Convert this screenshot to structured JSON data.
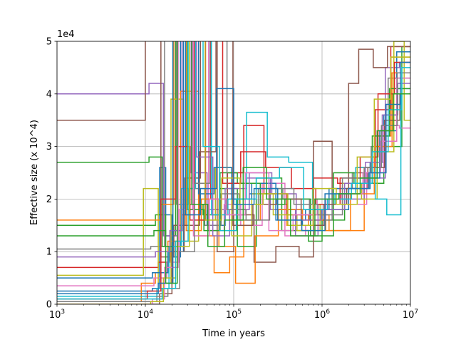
{
  "chart_data": {
    "type": "line",
    "step": "post",
    "xlabel": "Time in years",
    "ylabel": "Effective size (x 10^4)",
    "offset_text": "1e4",
    "x_scale": "log",
    "xlim": [
      1000,
      10000000
    ],
    "ylim": [
      0,
      5
    ],
    "grid": true,
    "legend": "none",
    "x_ticks": [
      {
        "value": 1000,
        "base": "10",
        "exp": "3"
      },
      {
        "value": 10000,
        "base": "10",
        "exp": "4"
      },
      {
        "value": 100000,
        "base": "10",
        "exp": "5"
      },
      {
        "value": 1000000,
        "base": "10",
        "exp": "6"
      },
      {
        "value": 10000000,
        "base": "10",
        "exp": "7"
      }
    ],
    "y_ticks": [
      {
        "value": 0,
        "label": "0"
      },
      {
        "value": 1,
        "label": "1"
      },
      {
        "value": 2,
        "label": "2"
      },
      {
        "value": 3,
        "label": "3"
      },
      {
        "value": 4,
        "label": "4"
      },
      {
        "value": 5,
        "label": "5"
      }
    ],
    "series": [
      {
        "color": "#1f77b4",
        "x": [
          1000,
          12000,
          14500,
          17000,
          20000,
          25000,
          35000,
          50000,
          80000,
          150000,
          300000,
          600000,
          1000000,
          2000000,
          3500000,
          5000000,
          7000000
        ],
        "y": [
          0.25,
          0.3,
          2.6,
          1.7,
          0.9,
          6.0,
          2.3,
          1.5,
          1.9,
          2.1,
          1.8,
          1.5,
          1.8,
          2.2,
          2.7,
          3.6,
          4.1
        ]
      },
      {
        "color": "#ff7f0e",
        "x": [
          1000,
          9000,
          13000,
          18000,
          25000,
          40000,
          60000,
          90000,
          130000,
          200000,
          400000,
          700000,
          1200000,
          2000000,
          3000000,
          4500000,
          6000000
        ],
        "y": [
          0.05,
          0.4,
          0.6,
          1.2,
          4.05,
          1.3,
          0.6,
          0.9,
          1.6,
          1.9,
          1.5,
          1.7,
          1.4,
          1.4,
          2.6,
          3.2,
          4.7
        ]
      },
      {
        "color": "#2ca02c",
        "x": [
          1000,
          13000,
          17000,
          22000,
          30000,
          45000,
          70000,
          110000,
          180000,
          350000,
          700000,
          1000000,
          1800000,
          3000000,
          5000000,
          8000000
        ],
        "y": [
          1.5,
          1.7,
          1.3,
          6.0,
          1.9,
          1.7,
          2.2,
          1.1,
          2.4,
          1.4,
          1.2,
          1.6,
          2.1,
          2.3,
          3.0,
          4.9
        ]
      },
      {
        "color": "#d62728",
        "x": [
          1000,
          14000,
          19000,
          26000,
          36000,
          55000,
          85000,
          130000,
          220000,
          400000,
          800000,
          1500000,
          2500000,
          4000000,
          6000000
        ],
        "y": [
          0.7,
          0.8,
          1.4,
          1.7,
          6.0,
          2.0,
          2.5,
          3.4,
          2.1,
          1.7,
          2.4,
          2.3,
          2.6,
          3.7,
          4.9
        ]
      },
      {
        "color": "#9467bd",
        "x": [
          1000,
          11000,
          16000,
          23000,
          33000,
          50000,
          80000,
          140000,
          260000,
          500000,
          900000,
          1700000,
          3000000,
          5200000,
          7500000
        ],
        "y": [
          4.0,
          4.2,
          1.3,
          6.0,
          2.5,
          1.8,
          2.2,
          2.4,
          1.8,
          1.3,
          1.9,
          2.0,
          2.4,
          4.5,
          4.6
        ]
      },
      {
        "color": "#8c564b",
        "x": [
          1000,
          10000,
          15000,
          21000,
          28000,
          42000,
          65000,
          100000,
          170000,
          300000,
          550000,
          800000,
          1300000,
          2000000,
          2600000,
          3800000,
          5500000
        ],
        "y": [
          3.5,
          5.9,
          0.9,
          1.5,
          2.4,
          6.0,
          1.0,
          1.7,
          0.8,
          1.1,
          0.9,
          3.1,
          2.0,
          4.2,
          4.85,
          4.5,
          4.9
        ]
      },
      {
        "color": "#e377c2",
        "x": [
          1000,
          12500,
          17500,
          24000,
          34000,
          52000,
          78000,
          120000,
          210000,
          380000,
          650000,
          1100000,
          1900000,
          3200000,
          5000000,
          7500000
        ],
        "y": [
          0.35,
          0.5,
          0.8,
          1.8,
          6.0,
          1.4,
          1.9,
          1.5,
          2.3,
          1.3,
          1.5,
          2.0,
          1.9,
          2.5,
          3.4,
          3.35
        ]
      },
      {
        "color": "#7f7f7f",
        "x": [
          1000,
          11500,
          16500,
          22500,
          31000,
          47000,
          72000,
          115000,
          190000,
          360000,
          720000,
          1300000,
          2200000,
          3600000,
          5600000
        ],
        "y": [
          1.05,
          1.1,
          6.0,
          1.9,
          2.2,
          1.5,
          2.1,
          1.6,
          2.2,
          2.0,
          1.6,
          2.2,
          2.5,
          3.0,
          4.3
        ]
      },
      {
        "color": "#bcbd22",
        "x": [
          1000,
          9500,
          14000,
          19500,
          27000,
          40000,
          62000,
          95000,
          160000,
          280000,
          520000,
          950000,
          1700000,
          2800000,
          4200000,
          6500000,
          8500000
        ],
        "y": [
          0.55,
          2.2,
          0.4,
          3.9,
          1.2,
          1.6,
          2.6,
          1.3,
          2.1,
          1.7,
          1.4,
          1.9,
          2.3,
          2.0,
          2.9,
          5.0,
          3.5
        ]
      },
      {
        "color": "#17becf",
        "x": [
          1000,
          13500,
          18500,
          25500,
          37000,
          56000,
          86000,
          140000,
          240000,
          420000,
          780000,
          1400000,
          2400000,
          4000000,
          5400000,
          7800000
        ],
        "y": [
          0.15,
          0.3,
          1.1,
          2.2,
          6.0,
          1.7,
          2.0,
          3.65,
          2.8,
          2.7,
          1.9,
          2.1,
          2.6,
          2.0,
          1.7,
          4.0
        ]
      },
      {
        "color": "#1f77b4",
        "x": [
          1000,
          12000,
          18000,
          27000,
          40000,
          60000,
          95000,
          160000,
          300000,
          650000,
          1200000,
          2500000,
          4500000,
          7000000
        ],
        "y": [
          0.5,
          0.6,
          1.0,
          6.0,
          2.1,
          2.6,
          2.0,
          2.3,
          1.6,
          1.8,
          2.2,
          2.4,
          3.3,
          4.8
        ]
      },
      {
        "color": "#ff7f0e",
        "x": [
          1000,
          15000,
          21000,
          29000,
          43000,
          68000,
          105000,
          175000,
          320000,
          600000,
          1100000,
          2100000,
          3900000,
          6200000
        ],
        "y": [
          1.6,
          1.9,
          6.0,
          1.4,
          2.0,
          1.1,
          0.4,
          1.3,
          1.8,
          1.6,
          1.4,
          2.1,
          3.0,
          4.4
        ]
      },
      {
        "color": "#2ca02c",
        "x": [
          1000,
          11000,
          15500,
          20500,
          30000,
          46000,
          70000,
          110000,
          200000,
          380000,
          740000,
          1350000,
          2300000,
          3700000,
          5800000
        ],
        "y": [
          2.7,
          2.8,
          1.1,
          6.0,
          1.8,
          1.4,
          2.5,
          2.3,
          1.9,
          2.0,
          1.3,
          2.5,
          2.3,
          3.2,
          4.1
        ]
      },
      {
        "color": "#d62728",
        "x": [
          1000,
          10500,
          15000,
          22000,
          32000,
          48000,
          75000,
          120000,
          230000,
          450000,
          850000,
          1600000,
          2700000,
          4300000,
          6600000
        ],
        "y": [
          0.1,
          0.25,
          2.0,
          3.0,
          1.6,
          6.0,
          2.3,
          2.9,
          2.6,
          2.2,
          1.9,
          2.4,
          2.8,
          4.0,
          4.6
        ]
      },
      {
        "color": "#9467bd",
        "x": [
          1000,
          13000,
          19000,
          26000,
          38000,
          58000,
          90000,
          150000,
          270000,
          510000,
          980000,
          1800000,
          3100000,
          4800000,
          7200000
        ],
        "y": [
          0.9,
          1.0,
          1.4,
          6.0,
          2.8,
          1.3,
          1.8,
          2.5,
          2.1,
          1.6,
          1.8,
          2.3,
          2.7,
          3.6,
          4.2
        ]
      },
      {
        "color": "#8c564b",
        "x": [
          1000,
          14500,
          20000,
          27500,
          41000,
          63000,
          98000,
          165000,
          310000,
          580000,
          1050000,
          1900000,
          3300000,
          5100000,
          7600000
        ],
        "y": [
          0.0,
          0.2,
          1.0,
          1.5,
          2.9,
          6.0,
          1.5,
          1.9,
          2.0,
          1.5,
          1.9,
          2.2,
          2.6,
          3.5,
          4.0
        ]
      },
      {
        "color": "#e377c2",
        "x": [
          1000,
          12000,
          16500,
          23500,
          35000,
          53000,
          82000,
          135000,
          250000,
          470000,
          880000,
          1650000,
          2900000,
          4600000,
          7000000
        ],
        "y": [
          0.0,
          0.1,
          0.7,
          6.0,
          1.3,
          2.0,
          1.7,
          2.5,
          1.4,
          1.7,
          2.0,
          2.1,
          2.5,
          3.1,
          4.3
        ]
      },
      {
        "color": "#7f7f7f",
        "x": [
          1000,
          13500,
          18000,
          24500,
          36000,
          54000,
          84000,
          138000,
          255000,
          480000,
          900000,
          1700000,
          3000000,
          4700000,
          7100000
        ],
        "y": [
          0.05,
          0.15,
          0.3,
          1.0,
          2.3,
          6.0,
          1.8,
          1.6,
          2.2,
          1.9,
          1.7,
          2.4,
          2.6,
          3.4,
          4.4
        ]
      },
      {
        "color": "#bcbd22",
        "x": [
          1000,
          11500,
          16000,
          22000,
          31500,
          47500,
          73000,
          118000,
          215000,
          410000,
          790000,
          1450000,
          2500000,
          3900000,
          6000000
        ],
        "y": [
          0.0,
          0.05,
          0.5,
          1.1,
          6.0,
          1.6,
          2.4,
          1.9,
          2.1,
          1.5,
          2.2,
          1.9,
          2.8,
          3.9,
          4.7
        ]
      },
      {
        "color": "#17becf",
        "x": [
          1000,
          15500,
          22000,
          30500,
          45000,
          69000,
          107000,
          180000,
          330000,
          620000,
          1150000,
          2150000,
          3700000,
          5600000,
          8000000
        ],
        "y": [
          0.1,
          0.3,
          1.2,
          6.0,
          3.0,
          1.4,
          2.0,
          2.4,
          2.6,
          1.8,
          2.0,
          2.3,
          2.9,
          3.7,
          4.5
        ]
      },
      {
        "color": "#1f77b4",
        "x": [
          1000,
          14000,
          20500,
          28500,
          42000,
          64000,
          100000,
          170000,
          315000,
          590000,
          1080000,
          2000000,
          3400000,
          5300000,
          7700000
        ],
        "y": [
          0.2,
          0.4,
          6.0,
          1.7,
          2.2,
          4.1,
          1.9,
          2.2,
          1.6,
          1.4,
          2.1,
          2.2,
          2.5,
          3.8,
          4.6
        ]
      },
      {
        "color": "#2ca02c",
        "x": [
          1000,
          12500,
          17000,
          23000,
          33500,
          51000,
          79000,
          128000,
          235000,
          440000,
          830000,
          1550000,
          2700000,
          4200000,
          6400000
        ],
        "y": [
          1.3,
          1.4,
          0.4,
          6.0,
          1.9,
          1.1,
          1.6,
          2.6,
          2.0,
          1.3,
          2.0,
          2.1,
          2.4,
          3.3,
          4.0
        ]
      }
    ]
  }
}
